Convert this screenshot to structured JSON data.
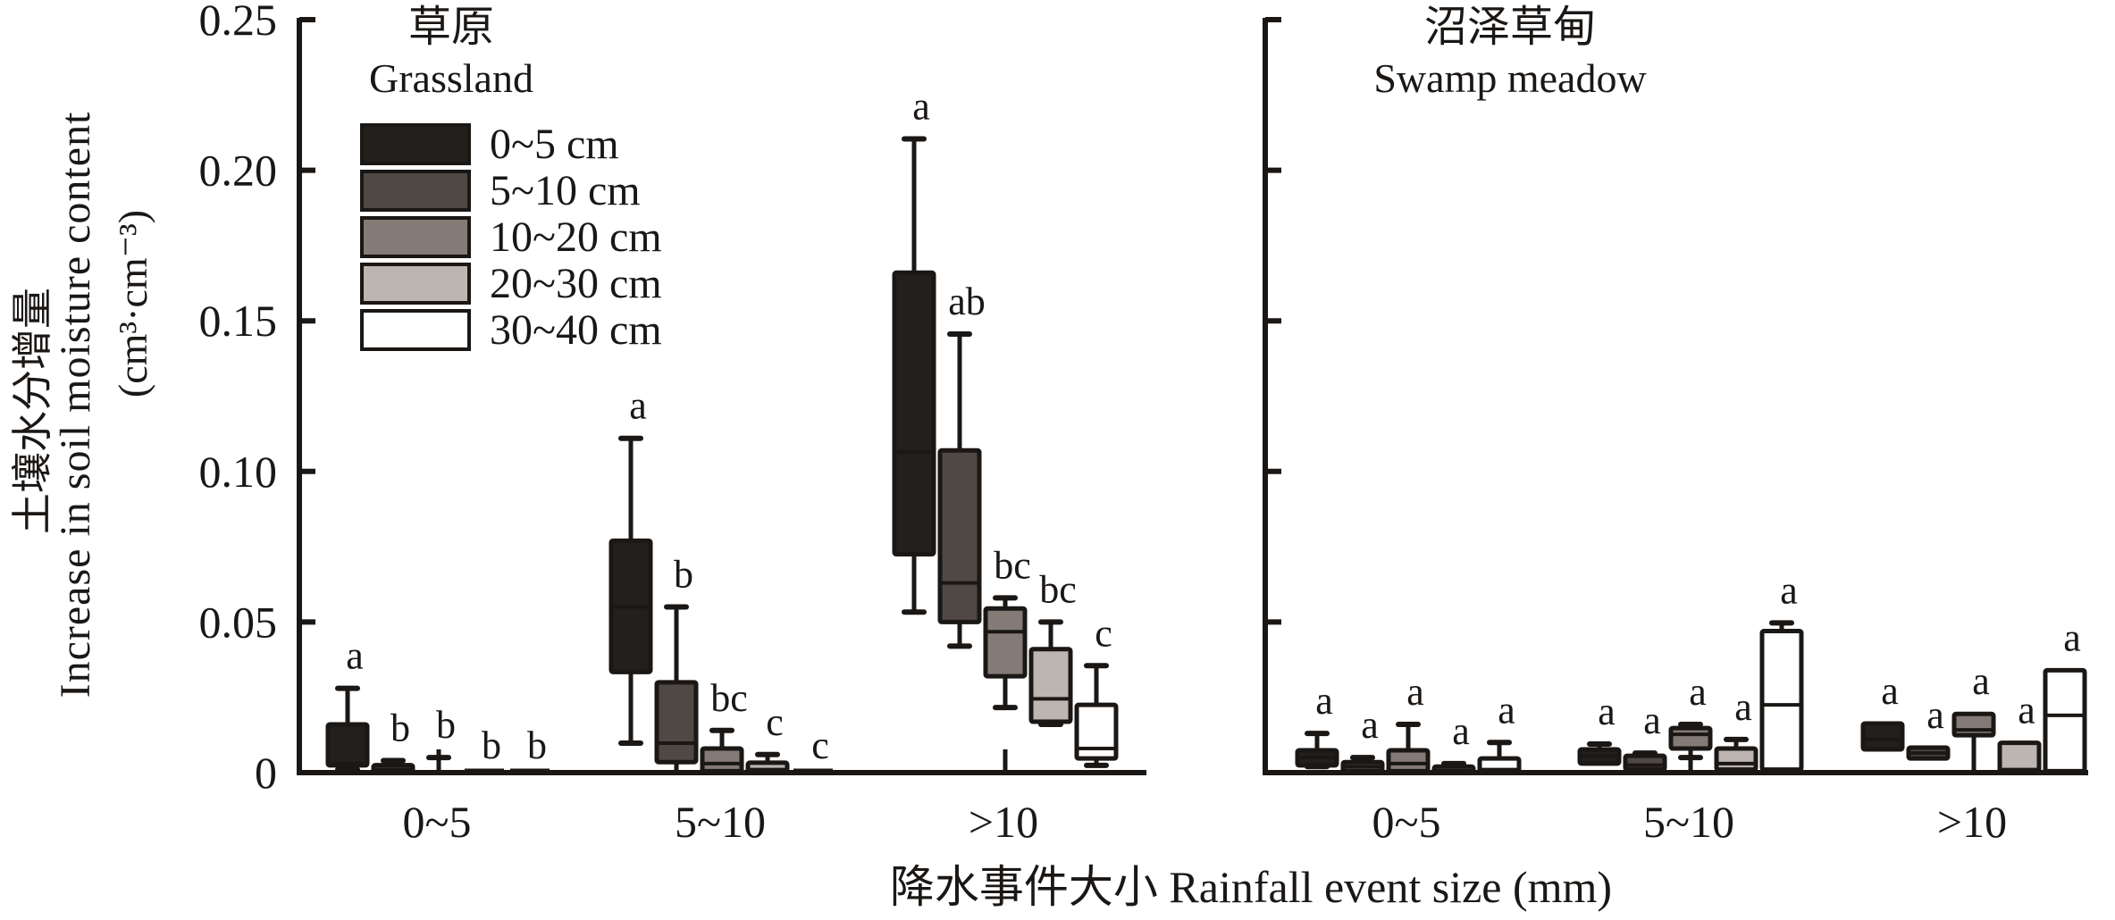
{
  "chart_data": {
    "type": "boxplot",
    "ylabel_lines": [
      "土壤水分增量",
      "Increase in soil moisture content",
      "(cm³·cm⁻³)"
    ],
    "xlabel": "降水事件大小 Rainfall event size (mm)",
    "ylim": [
      0,
      0.25
    ],
    "yticks": [
      "0",
      "0.05",
      "0.10",
      "0.15",
      "0.20",
      "0.25"
    ],
    "ytick_values": [
      0,
      0.05,
      0.1,
      0.15,
      0.2,
      0.25
    ],
    "categories": [
      "0~5",
      "5~10",
      ">10"
    ],
    "legend": {
      "position": "top-left",
      "entries": [
        "0~5 cm",
        "5~10 cm",
        "10~20 cm",
        "20~30 cm",
        "30~40 cm"
      ],
      "colors": [
        "#231f1c",
        "#4f4845",
        "#847b77",
        "#bcb5b1",
        "#ffffff"
      ]
    },
    "panels": [
      {
        "title_cn": "草原",
        "title_en": "Grassland",
        "groups": [
          {
            "category": "0~5",
            "boxes": [
              {
                "depth": "0~5 cm",
                "min": 0.001,
                "q1": 0.0024,
                "median": 0.003,
                "q3": 0.016,
                "max": 0.028,
                "letter": "a"
              },
              {
                "depth": "5~10 cm",
                "min": 0.0,
                "q1": 0.0,
                "median": 0.001,
                "q3": 0.0025,
                "max": 0.004,
                "letter": "b"
              },
              {
                "depth": "10~20 cm",
                "min": 0.0,
                "q1": 0.0,
                "median": 0.0,
                "q3": 0.0,
                "max": 0.005,
                "letter": "b"
              },
              {
                "depth": "20~30 cm",
                "min": 0.0,
                "q1": 0.0,
                "median": 0.0,
                "q3": 0.0,
                "max": 0.0,
                "letter": "b"
              },
              {
                "depth": "30~40 cm",
                "min": 0.0,
                "q1": 0.0,
                "median": 0.0,
                "q3": 0.0,
                "max": 0.0,
                "letter": "b"
              }
            ]
          },
          {
            "category": "5~10",
            "boxes": [
              {
                "depth": "0~5 cm",
                "min": 0.0098,
                "q1": 0.0334,
                "median": 0.055,
                "q3": 0.077,
                "max": 0.111,
                "letter": "a"
              },
              {
                "depth": "5~10 cm",
                "min": 0.0,
                "q1": 0.0035,
                "median": 0.0098,
                "q3": 0.03,
                "max": 0.055,
                "letter": "b"
              },
              {
                "depth": "10~20 cm",
                "min": 0.0,
                "q1": 0.0005,
                "median": 0.003,
                "q3": 0.008,
                "max": 0.014,
                "letter": "bc"
              },
              {
                "depth": "20~30 cm",
                "min": 0.0,
                "q1": 0.0005,
                "median": 0.001,
                "q3": 0.0033,
                "max": 0.006,
                "letter": "c"
              },
              {
                "depth": "30~40 cm",
                "min": 0.0,
                "q1": 0.0,
                "median": 0.0,
                "q3": 0.0,
                "max": 0.0,
                "letter": "c"
              }
            ]
          },
          {
            "category": ">10",
            "boxes": [
              {
                "depth": "0~5 cm",
                "min": 0.0533,
                "q1": 0.0725,
                "median": 0.1065,
                "q3": 0.166,
                "max": 0.2104,
                "letter": "a"
              },
              {
                "depth": "5~10 cm",
                "min": 0.042,
                "q1": 0.05,
                "median": 0.063,
                "q3": 0.107,
                "max": 0.1456,
                "letter": "ab"
              },
              {
                "depth": "10~20 cm",
                "min": 0.0216,
                "q1": 0.032,
                "median": 0.0468,
                "q3": 0.0545,
                "max": 0.058,
                "letter": "bc"
              },
              {
                "depth": "20~30 cm",
                "min": 0.016,
                "q1": 0.0169,
                "median": 0.0245,
                "q3": 0.041,
                "max": 0.05,
                "letter": "bc"
              },
              {
                "depth": "30~40 cm",
                "min": 0.0024,
                "q1": 0.0047,
                "median": 0.008,
                "q3": 0.0225,
                "max": 0.0355,
                "letter": "c"
              }
            ]
          }
        ]
      },
      {
        "title_cn": "沼泽草甸",
        "title_en": "Swamp meadow",
        "groups": [
          {
            "category": "0~5",
            "boxes": [
              {
                "depth": "0~5 cm",
                "min": 0.002,
                "q1": 0.0024,
                "median": 0.005,
                "q3": 0.0074,
                "max": 0.013,
                "letter": "a"
              },
              {
                "depth": "5~10 cm",
                "min": 0.0,
                "q1": 0.0005,
                "median": 0.002,
                "q3": 0.0035,
                "max": 0.005,
                "letter": "a"
              },
              {
                "depth": "10~20 cm",
                "min": 0.0,
                "q1": 0.0005,
                "median": 0.003,
                "q3": 0.0074,
                "max": 0.016,
                "letter": "a"
              },
              {
                "depth": "20~30 cm",
                "min": 0.0,
                "q1": 0.0005,
                "median": 0.001,
                "q3": 0.002,
                "max": 0.003,
                "letter": "a"
              },
              {
                "depth": "30~40 cm",
                "min": 0.0,
                "q1": 0.0005,
                "median": 0.001,
                "q3": 0.0047,
                "max": 0.01,
                "letter": "a"
              }
            ]
          },
          {
            "category": "5~10",
            "boxes": [
              {
                "depth": "0~5 cm",
                "min": 0.003,
                "q1": 0.003,
                "median": 0.0055,
                "q3": 0.0077,
                "max": 0.0095,
                "letter": "a"
              },
              {
                "depth": "5~10 cm",
                "min": 0.001,
                "q1": 0.001,
                "median": 0.0025,
                "q3": 0.0056,
                "max": 0.0065,
                "letter": "a"
              },
              {
                "depth": "10~20 cm",
                "min": 0.005,
                "q1": 0.008,
                "median": 0.0127,
                "q3": 0.0148,
                "max": 0.016,
                "letter": "a"
              },
              {
                "depth": "20~30 cm",
                "min": 0.001,
                "q1": 0.001,
                "median": 0.003,
                "q3": 0.008,
                "max": 0.011,
                "letter": "a"
              },
              {
                "depth": "30~40 cm",
                "min": 0.001,
                "q1": 0.001,
                "median": 0.0225,
                "q3": 0.047,
                "max": 0.0497,
                "letter": "a"
              }
            ]
          },
          {
            "category": ">10",
            "boxes": [
              {
                "depth": "0~5 cm",
                "min": 0.0077,
                "q1": 0.0077,
                "median": 0.011,
                "q3": 0.0163,
                "max": 0.0163,
                "letter": "a"
              },
              {
                "depth": "5~10 cm",
                "min": 0.0047,
                "q1": 0.0047,
                "median": 0.0065,
                "q3": 0.0083,
                "max": 0.0083,
                "letter": "a"
              },
              {
                "depth": "10~20 cm",
                "min": 0.0,
                "q1": 0.0124,
                "median": 0.0142,
                "q3": 0.0195,
                "max": 0.0195,
                "letter": "a"
              },
              {
                "depth": "20~30 cm",
                "min": 0.0,
                "q1": 0.0005,
                "median": 0.001,
                "q3": 0.0099,
                "max": 0.0099,
                "letter": "a"
              },
              {
                "depth": "30~40 cm",
                "min": 0.0,
                "q1": 0.0005,
                "median": 0.019,
                "q3": 0.034,
                "max": 0.034,
                "letter": "a"
              }
            ]
          }
        ]
      }
    ]
  }
}
